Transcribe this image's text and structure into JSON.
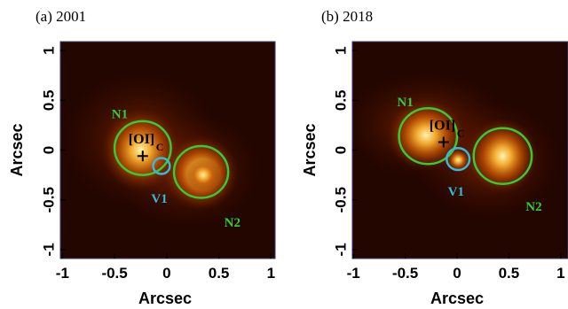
{
  "chart_data": [
    {
      "type": "image",
      "title": "(a) 2001",
      "xlabel": "Arcsec",
      "ylabel": "Arcsec",
      "xlim": [
        -1.02,
        1.04
      ],
      "ylim": [
        -1.09,
        1.09
      ],
      "xticks": [
        -1,
        -0.5,
        0,
        0.5,
        1
      ],
      "yticks": [
        -1,
        -0.5,
        0,
        0.5,
        1
      ],
      "markers": [
        {
          "name": "N1",
          "x": -0.23,
          "y": 0.02,
          "r": 0.27,
          "color": "#33cc33"
        },
        {
          "name": "V1",
          "x": -0.05,
          "y": -0.16,
          "r": 0.08,
          "color": "#33bbdd"
        },
        {
          "name": "N2",
          "x": 0.33,
          "y": -0.22,
          "r": 0.26,
          "color": "#33cc33"
        }
      ],
      "center": {
        "label": "[OI]",
        "sub": "C",
        "x": -0.23,
        "y": -0.06
      }
    },
    {
      "type": "image",
      "title": "(b) 2018",
      "xlabel": "Arcsec",
      "ylabel": "Arcsec",
      "xlim": [
        -1.01,
        1.07
      ],
      "ylim": [
        -1.09,
        1.09
      ],
      "xticks": [
        -1,
        -0.5,
        0,
        0.5,
        1
      ],
      "yticks": [
        -1,
        -0.5,
        0,
        0.5,
        1
      ],
      "markers": [
        {
          "name": "N1",
          "x": -0.28,
          "y": 0.14,
          "r": 0.28,
          "color": "#33cc33"
        },
        {
          "name": "V1",
          "x": 0.01,
          "y": -0.09,
          "r": 0.11,
          "color": "#33bbdd"
        },
        {
          "name": "N2",
          "x": 0.44,
          "y": -0.06,
          "r": 0.28,
          "color": "#33cc33"
        }
      ],
      "center": {
        "label": "[OI]",
        "sub": "C",
        "x": -0.13,
        "y": 0.08
      }
    }
  ]
}
